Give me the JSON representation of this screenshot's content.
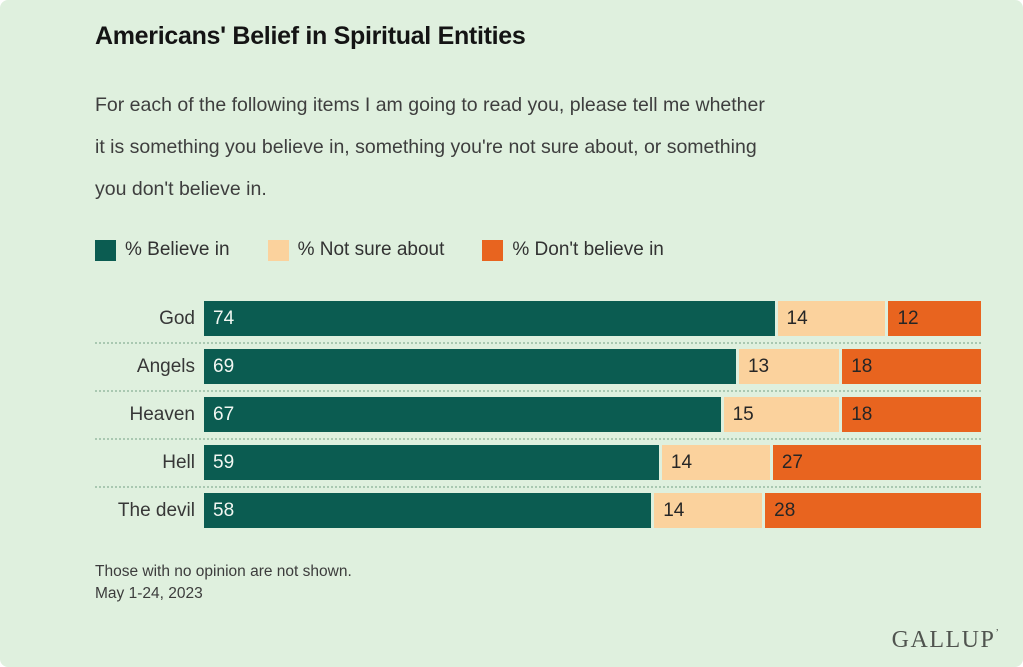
{
  "header": {
    "title": "Americans' Belief in Spiritual Entities",
    "subtitle_lines": {
      "0": "For each of the following items I am going to read you, please tell me whether",
      "1": "it is something you believe in, something you're not sure about, or something",
      "2": "you don't believe in."
    }
  },
  "colors": {
    "background": "#dff0de",
    "believe": "#0b5c51",
    "not_sure": "#fbd29d",
    "dont_believe": "#e8641f",
    "separator": "#a9c8b1"
  },
  "chart_data": {
    "type": "bar",
    "orientation": "horizontal-stacked",
    "title": "Americans' Belief in Spiritual Entities",
    "xlabel": "",
    "ylabel": "",
    "xlim": [
      0,
      100
    ],
    "grid": false,
    "legend_position": "top",
    "categories": [
      "God",
      "Angels",
      "Heaven",
      "Hell",
      "The devil"
    ],
    "series": [
      {
        "name": "% Believe in",
        "color": "#0b5c51",
        "value_text": "light",
        "values": [
          74,
          69,
          67,
          59,
          58
        ]
      },
      {
        "name": "% Not sure about",
        "color": "#fbd29d",
        "value_text": "dark",
        "values": [
          14,
          13,
          15,
          14,
          14
        ]
      },
      {
        "name": "% Don't believe in",
        "color": "#e8641f",
        "value_text": "dark",
        "values": [
          12,
          18,
          18,
          27,
          28
        ]
      }
    ]
  },
  "footer": {
    "note": "Those with no opinion are not shown.",
    "date": "May 1-24, 2023",
    "brand": "GALLUP",
    "brand_mark": "’"
  }
}
